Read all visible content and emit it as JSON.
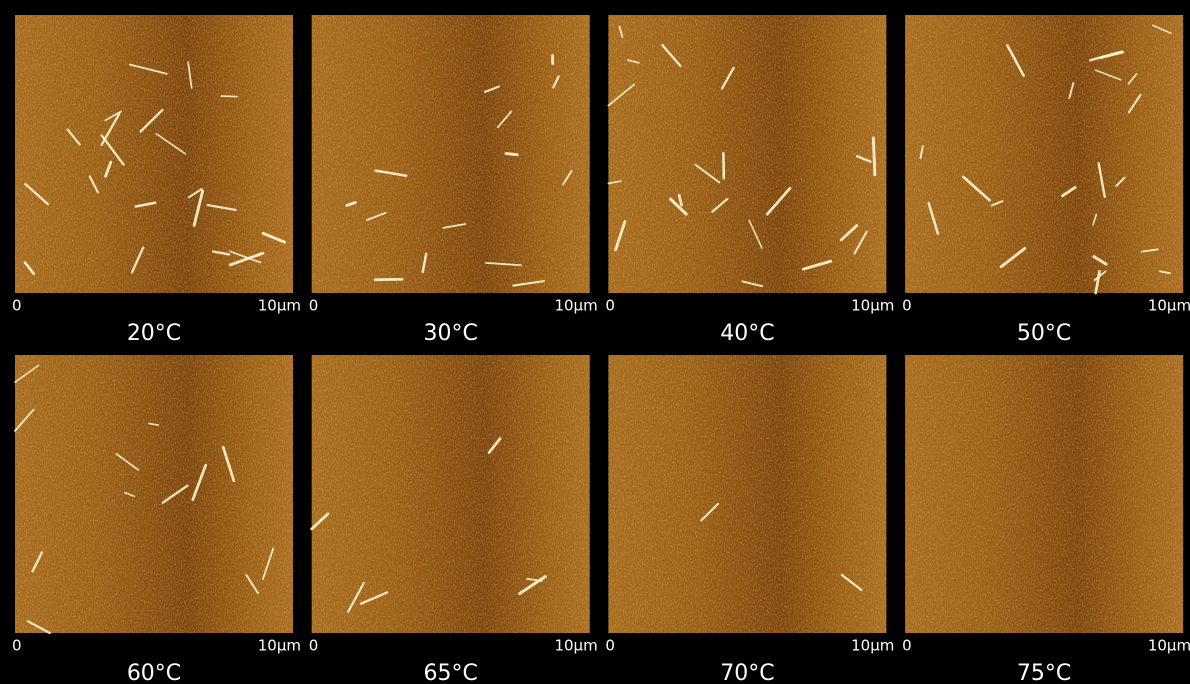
{
  "panels": [
    {
      "temperature": "20°C",
      "scale_start": "0",
      "scale_end": "10μm"
    },
    {
      "temperature": "30°C",
      "scale_start": "0",
      "scale_end": "10μm"
    },
    {
      "temperature": "40°C",
      "scale_start": "0",
      "scale_end": "10μm"
    },
    {
      "temperature": "50°C",
      "scale_start": "0",
      "scale_end": "10μm"
    },
    {
      "temperature": "60°C",
      "scale_start": "0",
      "scale_end": "10μm"
    },
    {
      "temperature": "65°C",
      "scale_start": "0",
      "scale_end": "10μm"
    },
    {
      "temperature": "70°C",
      "scale_start": "0",
      "scale_end": "10μm"
    },
    {
      "temperature": "75°C",
      "scale_start": "0",
      "scale_end": "10μm"
    }
  ]
}
